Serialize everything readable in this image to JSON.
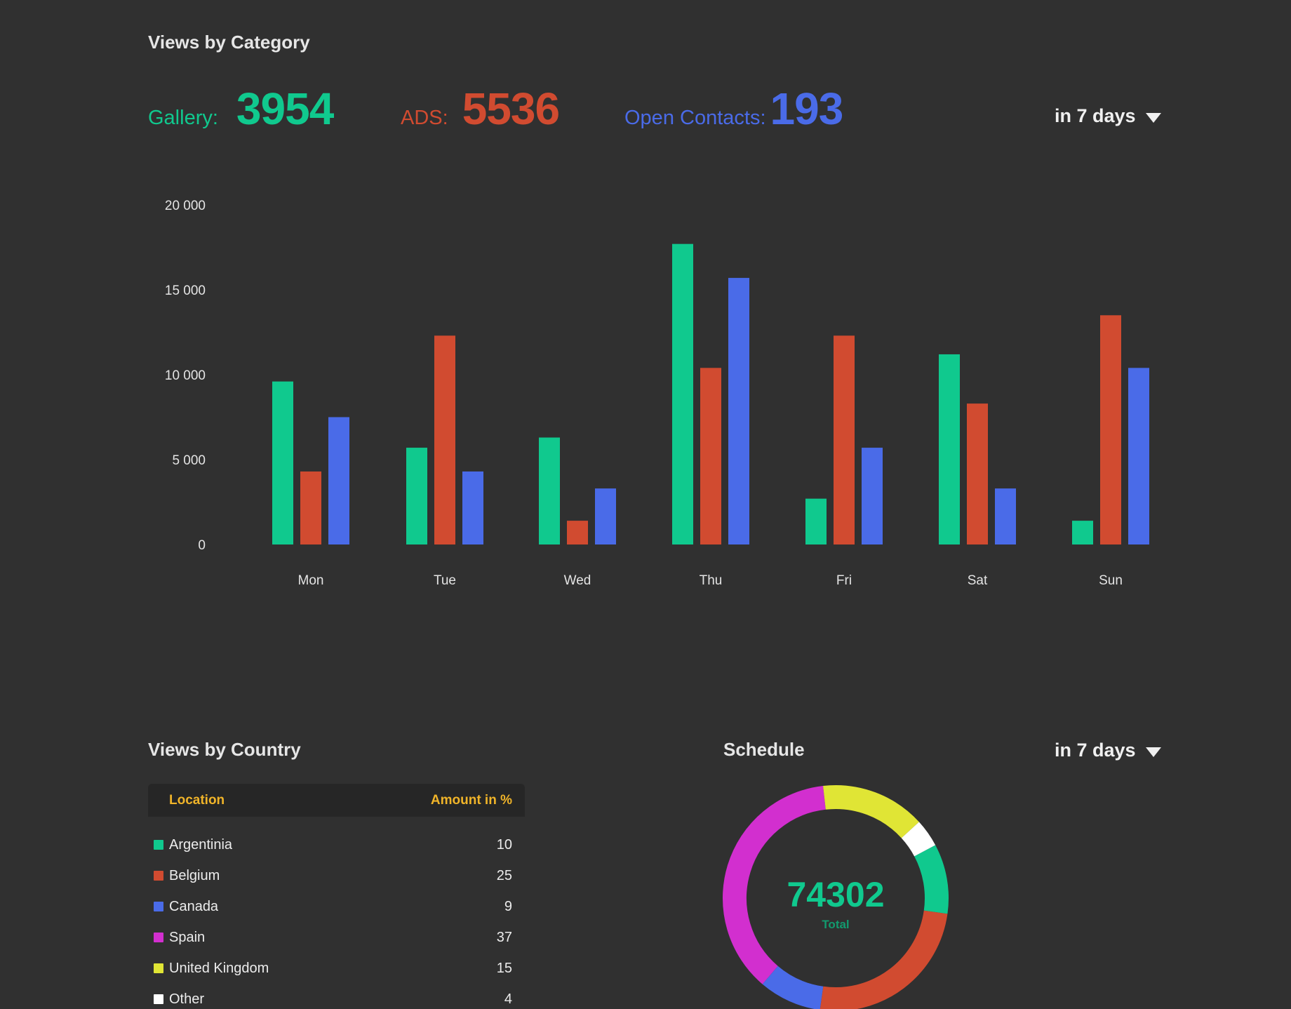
{
  "category": {
    "title": "Views by Category",
    "stats": [
      {
        "label": "Gallery:",
        "value": "3954",
        "color": "#10c98e"
      },
      {
        "label": "ADS:",
        "value": "5536",
        "color": "#d14b30"
      },
      {
        "label": "Open Contacts:",
        "value": "193",
        "color": "#4a6be8"
      }
    ],
    "period": "in 7 days"
  },
  "chart_data": {
    "type": "bar",
    "categories": [
      "Mon",
      "Tue",
      "Wed",
      "Thu",
      "Fri",
      "Sat",
      "Sun"
    ],
    "series": [
      {
        "color": "#10c98e",
        "values": [
          9600,
          5700,
          6300,
          17700,
          2700,
          11200,
          1400
        ]
      },
      {
        "color": "#d14b30",
        "values": [
          4300,
          12300,
          1400,
          10400,
          12300,
          8300,
          13500
        ]
      },
      {
        "color": "#4a6be8",
        "values": [
          7500,
          4300,
          3300,
          15700,
          5700,
          3300,
          10400
        ]
      }
    ],
    "ylim": [
      0,
      20000
    ],
    "yticks": [
      0,
      5000,
      10000,
      15000,
      20000
    ],
    "ytick_labels": [
      "0",
      "5 000",
      "10 000",
      "15 000",
      "20 000"
    ],
    "grid": false,
    "legend": "none"
  },
  "country": {
    "title": "Views by Country",
    "columns": {
      "location": "Location",
      "amount": "Amount in %"
    },
    "rows": [
      {
        "name": "Argentinia",
        "value": "10",
        "color": "#10c98e"
      },
      {
        "name": "Belgium",
        "value": "25",
        "color": "#d14b30"
      },
      {
        "name": "Canada",
        "value": "9",
        "color": "#4a6be8"
      },
      {
        "name": "Spain",
        "value": "37",
        "color": "#d22fcf"
      },
      {
        "name": "United Kingdom",
        "value": "15",
        "color": "#e0e535"
      },
      {
        "name": "Other",
        "value": "4",
        "color": "#ffffff"
      }
    ]
  },
  "schedule": {
    "title": "Schedule",
    "period": "in 7 days",
    "total": "74302",
    "total_label": "Total",
    "donut": {
      "type": "pie",
      "shares": [
        {
          "name": "Argentinia",
          "value": 10,
          "color": "#10c98e"
        },
        {
          "name": "Belgium",
          "value": 25,
          "color": "#d14b30"
        },
        {
          "name": "Canada",
          "value": 9,
          "color": "#4a6be8"
        },
        {
          "name": "Spain",
          "value": 37,
          "color": "#d22fcf"
        },
        {
          "name": "United Kingdom",
          "value": 15,
          "color": "#e0e535"
        },
        {
          "name": "Other",
          "value": 4,
          "color": "#ffffff"
        }
      ]
    }
  }
}
